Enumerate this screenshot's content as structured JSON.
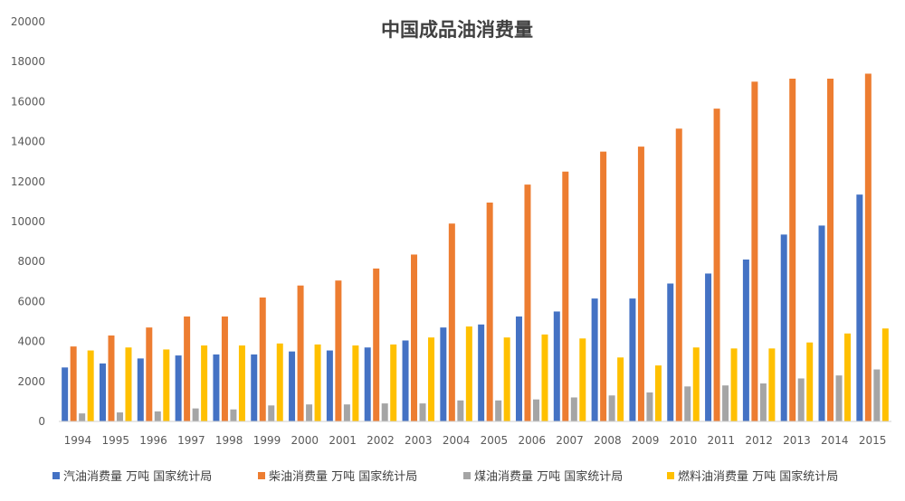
{
  "chart_data": {
    "type": "bar",
    "title": "中国成品油消费量",
    "xlabel": "",
    "ylabel": "",
    "categories": [
      "1994",
      "1995",
      "1996",
      "1997",
      "1998",
      "1999",
      "2000",
      "2001",
      "2002",
      "2003",
      "2004",
      "2005",
      "2006",
      "2007",
      "2008",
      "2009",
      "2010",
      "2011",
      "2012",
      "2013",
      "2014",
      "2015"
    ],
    "ylim": [
      0,
      20000
    ],
    "yticks": [
      0,
      2000,
      4000,
      6000,
      8000,
      10000,
      12000,
      14000,
      16000,
      18000,
      20000
    ],
    "grid": false,
    "legend_position": "bottom",
    "series": [
      {
        "name": "汽油消费量 万吨 国家统计局",
        "color": "#4472C4",
        "values": [
          2700,
          2900,
          3150,
          3300,
          3350,
          3350,
          3500,
          3550,
          3700,
          4050,
          4700,
          4850,
          5250,
          5500,
          6150,
          6150,
          6900,
          7400,
          8100,
          9350,
          9800,
          11350
        ]
      },
      {
        "name": "柴油消费量 万吨 国家统计局",
        "color": "#ED7D31",
        "values": [
          3750,
          4300,
          4700,
          5250,
          5250,
          6200,
          6800,
          7050,
          7650,
          8350,
          9900,
          10950,
          11850,
          12500,
          13500,
          13750,
          14650,
          15650,
          17000,
          17150,
          17150,
          17400
        ]
      },
      {
        "name": "煤油消费量 万吨 国家统计局",
        "color": "#A5A5A5",
        "values": [
          400,
          450,
          500,
          650,
          600,
          800,
          850,
          850,
          900,
          900,
          1050,
          1050,
          1100,
          1200,
          1300,
          1450,
          1750,
          1800,
          1900,
          2150,
          2300,
          2600
        ]
      },
      {
        "name": "燃料油消费量 万吨 国家统计局",
        "color": "#FFC000",
        "values": [
          3550,
          3700,
          3600,
          3800,
          3800,
          3900,
          3850,
          3800,
          3850,
          4200,
          4750,
          4200,
          4350,
          4150,
          3200,
          2800,
          3700,
          3650,
          3650,
          3950,
          4400,
          4650
        ]
      }
    ]
  }
}
